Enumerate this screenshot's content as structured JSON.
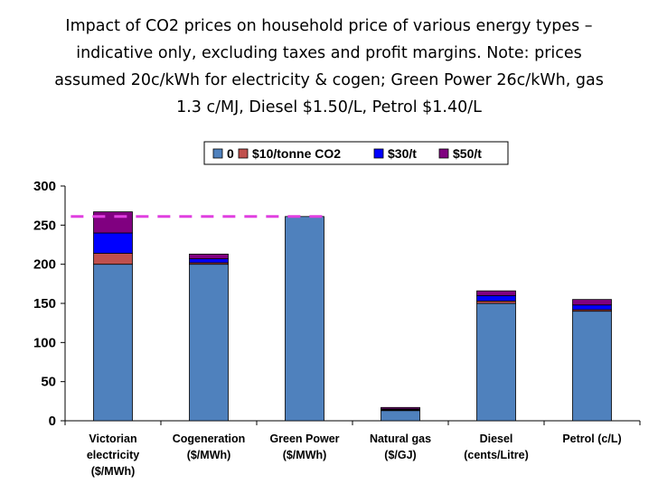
{
  "chart_data": {
    "type": "bar",
    "stacked": true,
    "title_lines": [
      "Impact of CO2 prices on household price of various energy types –",
      "indicative only, excluding taxes and profit margins. Note: prices",
      "assumed 20c/kWh for electricity & cogen; Green Power 26c/kWh, gas",
      "1.3 c/MJ, Diesel $1.50/L, Petrol $1.40/L"
    ],
    "categories": [
      [
        "Victorian",
        "electricity",
        "($/MWh)"
      ],
      [
        "Cogeneration",
        "($/MWh)"
      ],
      [
        "Green Power",
        "($/MWh)"
      ],
      [
        "Natural gas",
        "($/GJ)"
      ],
      [
        "Diesel",
        "(cents/Litre)"
      ],
      [
        "Petrol (c/L)"
      ]
    ],
    "series": [
      {
        "name": "0",
        "color": "#4f81bd",
        "values": [
          200,
          200,
          261,
          13,
          150,
          140
        ]
      },
      {
        "name": "$10/tonne CO2",
        "color": "#c0504d",
        "values": [
          14,
          2,
          0,
          1,
          3,
          2
        ]
      },
      {
        "name": "$30/t",
        "color": "#0000ff",
        "values": [
          26,
          5,
          0,
          1,
          7,
          6
        ]
      },
      {
        "name": "$50/t",
        "color": "#800080",
        "values": [
          27,
          6,
          0,
          2,
          6,
          7
        ]
      }
    ],
    "reference_line": {
      "value": 261,
      "color": "#e040e0",
      "style": "dashed"
    },
    "ylim": [
      0,
      300
    ],
    "yticks": [
      0,
      50,
      100,
      150,
      200,
      250,
      300
    ],
    "xlabel": "",
    "ylabel": "",
    "legend_position": "top"
  }
}
